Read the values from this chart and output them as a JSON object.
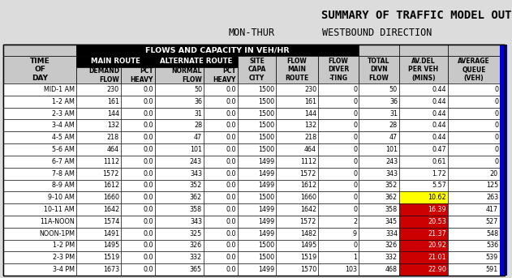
{
  "title": "SUMMARY OF TRAFFIC MODEL OUT",
  "subtitle_left": "MON-THUR",
  "subtitle_right": "WESTBOUND DIRECTION",
  "rows": [
    [
      "MID-1 AM",
      230,
      "0.0",
      50,
      "0.0",
      1500,
      230,
      0,
      50,
      "0.44",
      0
    ],
    [
      "1-2 AM",
      161,
      "0.0",
      36,
      "0.0",
      1500,
      161,
      0,
      36,
      "0.44",
      0
    ],
    [
      "2-3 AM",
      144,
      "0.0",
      31,
      "0.0",
      1500,
      144,
      0,
      31,
      "0.44",
      0
    ],
    [
      "3-4 AM",
      132,
      "0.0",
      28,
      "0.0",
      1500,
      132,
      0,
      28,
      "0.44",
      0
    ],
    [
      "4-5 AM",
      218,
      "0.0",
      47,
      "0.0",
      1500,
      218,
      0,
      47,
      "0.44",
      0
    ],
    [
      "5-6 AM",
      464,
      "0.0",
      101,
      "0.0",
      1500,
      464,
      0,
      101,
      "0.47",
      0
    ],
    [
      "6-7 AM",
      1112,
      "0.0",
      243,
      "0.0",
      1499,
      1112,
      0,
      243,
      "0.61",
      0
    ],
    [
      "7-8 AM",
      1572,
      "0.0",
      343,
      "0.0",
      1499,
      1572,
      0,
      343,
      "1.72",
      20
    ],
    [
      "8-9 AM",
      1612,
      "0.0",
      352,
      "0.0",
      1499,
      1612,
      0,
      352,
      "5.57",
      125
    ],
    [
      "9-10 AM",
      1660,
      "0.0",
      362,
      "0.0",
      1500,
      1660,
      0,
      362,
      "10.62",
      263
    ],
    [
      "10-11 AM",
      1642,
      "0.0",
      358,
      "0.0",
      1499,
      1642,
      0,
      358,
      "16.39",
      417
    ],
    [
      "11A-NOON",
      1574,
      "0.0",
      343,
      "0.0",
      1499,
      1572,
      2,
      345,
      "20.53",
      527
    ],
    [
      "NOON-1PM",
      1491,
      "0.0",
      325,
      "0.0",
      1499,
      1482,
      9,
      334,
      "21.37",
      548
    ],
    [
      "1-2 PM",
      1495,
      "0.0",
      326,
      "0.0",
      1500,
      1495,
      0,
      326,
      "20.92",
      536
    ],
    [
      "2-3 PM",
      1519,
      "0.0",
      332,
      "0.0",
      1500,
      1519,
      1,
      332,
      "21.01",
      539
    ],
    [
      "3-4 PM",
      1673,
      "0.0",
      365,
      "0.0",
      1499,
      1570,
      103,
      468,
      "22.90",
      591
    ]
  ],
  "highlight_yellow": [
    9
  ],
  "highlight_red": [
    10,
    11,
    12,
    13,
    14,
    15
  ],
  "title_bg": "#dcdcdc",
  "table_bg": "#c8c8c8",
  "blue_strip": "#0000cc"
}
